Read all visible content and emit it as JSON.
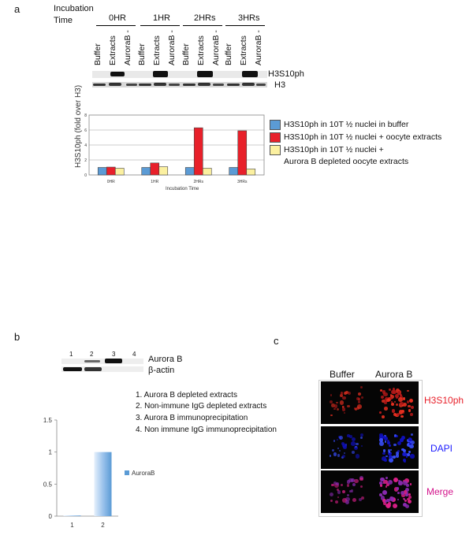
{
  "panel_a": {
    "letter": "a",
    "incubation_label_1": "Incubation",
    "incubation_label_2": "Time",
    "timepoints": [
      "0HR",
      "1HR",
      "2HRs",
      "3HRs"
    ],
    "lane_labels": [
      "Buffer",
      "Extracts",
      "AuroraB -"
    ],
    "blot_labels": [
      "H3S10ph",
      "H3"
    ]
  },
  "chart_a": {
    "type": "bar",
    "categories": [
      "0HR",
      "1HR",
      "2HRs",
      "3HRs"
    ],
    "ylabel": "H3S10ph (fold over H3)",
    "xlabel": "Incubation Time",
    "ylim": [
      0,
      8
    ],
    "yticks": [
      "0",
      "2",
      "4",
      "6",
      "8"
    ],
    "grid": true,
    "legend_position": "right",
    "series": [
      {
        "name": "H3S10ph in 10T ½ nuclei in buffer",
        "color": "#5b9bd5",
        "values": [
          1,
          1,
          1,
          1
        ]
      },
      {
        "name": "H3S10ph in 10T ½ nuclei + oocyte extracts",
        "color": "#e8202a",
        "values": [
          1.05,
          1.6,
          6.3,
          5.9
        ]
      },
      {
        "name": "H3S10ph in 10T ½ nuclei +",
        "name_line2": "Aurora B depleted oocyte extracts",
        "color": "#fbf0a0",
        "values": [
          0.9,
          1.1,
          0.9,
          0.8
        ]
      }
    ]
  },
  "panel_b": {
    "letter": "b",
    "lane_numbers": [
      "1",
      "2",
      "3",
      "4"
    ],
    "blot_labels": [
      "Aurora B",
      "β-actin"
    ],
    "list": [
      "1. Aurora B depleted extracts",
      "2. Non-immune IgG depleted extracts",
      "3. Aurora B immunoprecipitation",
      "4. Non immune IgG immunoprecipitation"
    ]
  },
  "chart_b": {
    "type": "bar",
    "categories": [
      "1",
      "2"
    ],
    "ylim": [
      0,
      1.5
    ],
    "yticks": [
      "0",
      "0.5",
      "1",
      "1.5"
    ],
    "legend_position": "right",
    "series": [
      {
        "name": "AuroraB",
        "color": "#5b9bd5",
        "values": [
          0.01,
          1.0
        ]
      }
    ]
  },
  "panel_c": {
    "letter": "c",
    "columns": [
      "Buffer",
      "Aurora B"
    ],
    "rows": [
      {
        "label": "H3S10ph",
        "color": "#e8202a"
      },
      {
        "label": "DAPI",
        "color": "#1a1aff"
      },
      {
        "label": "Merge",
        "color": "#d4148c"
      }
    ]
  }
}
